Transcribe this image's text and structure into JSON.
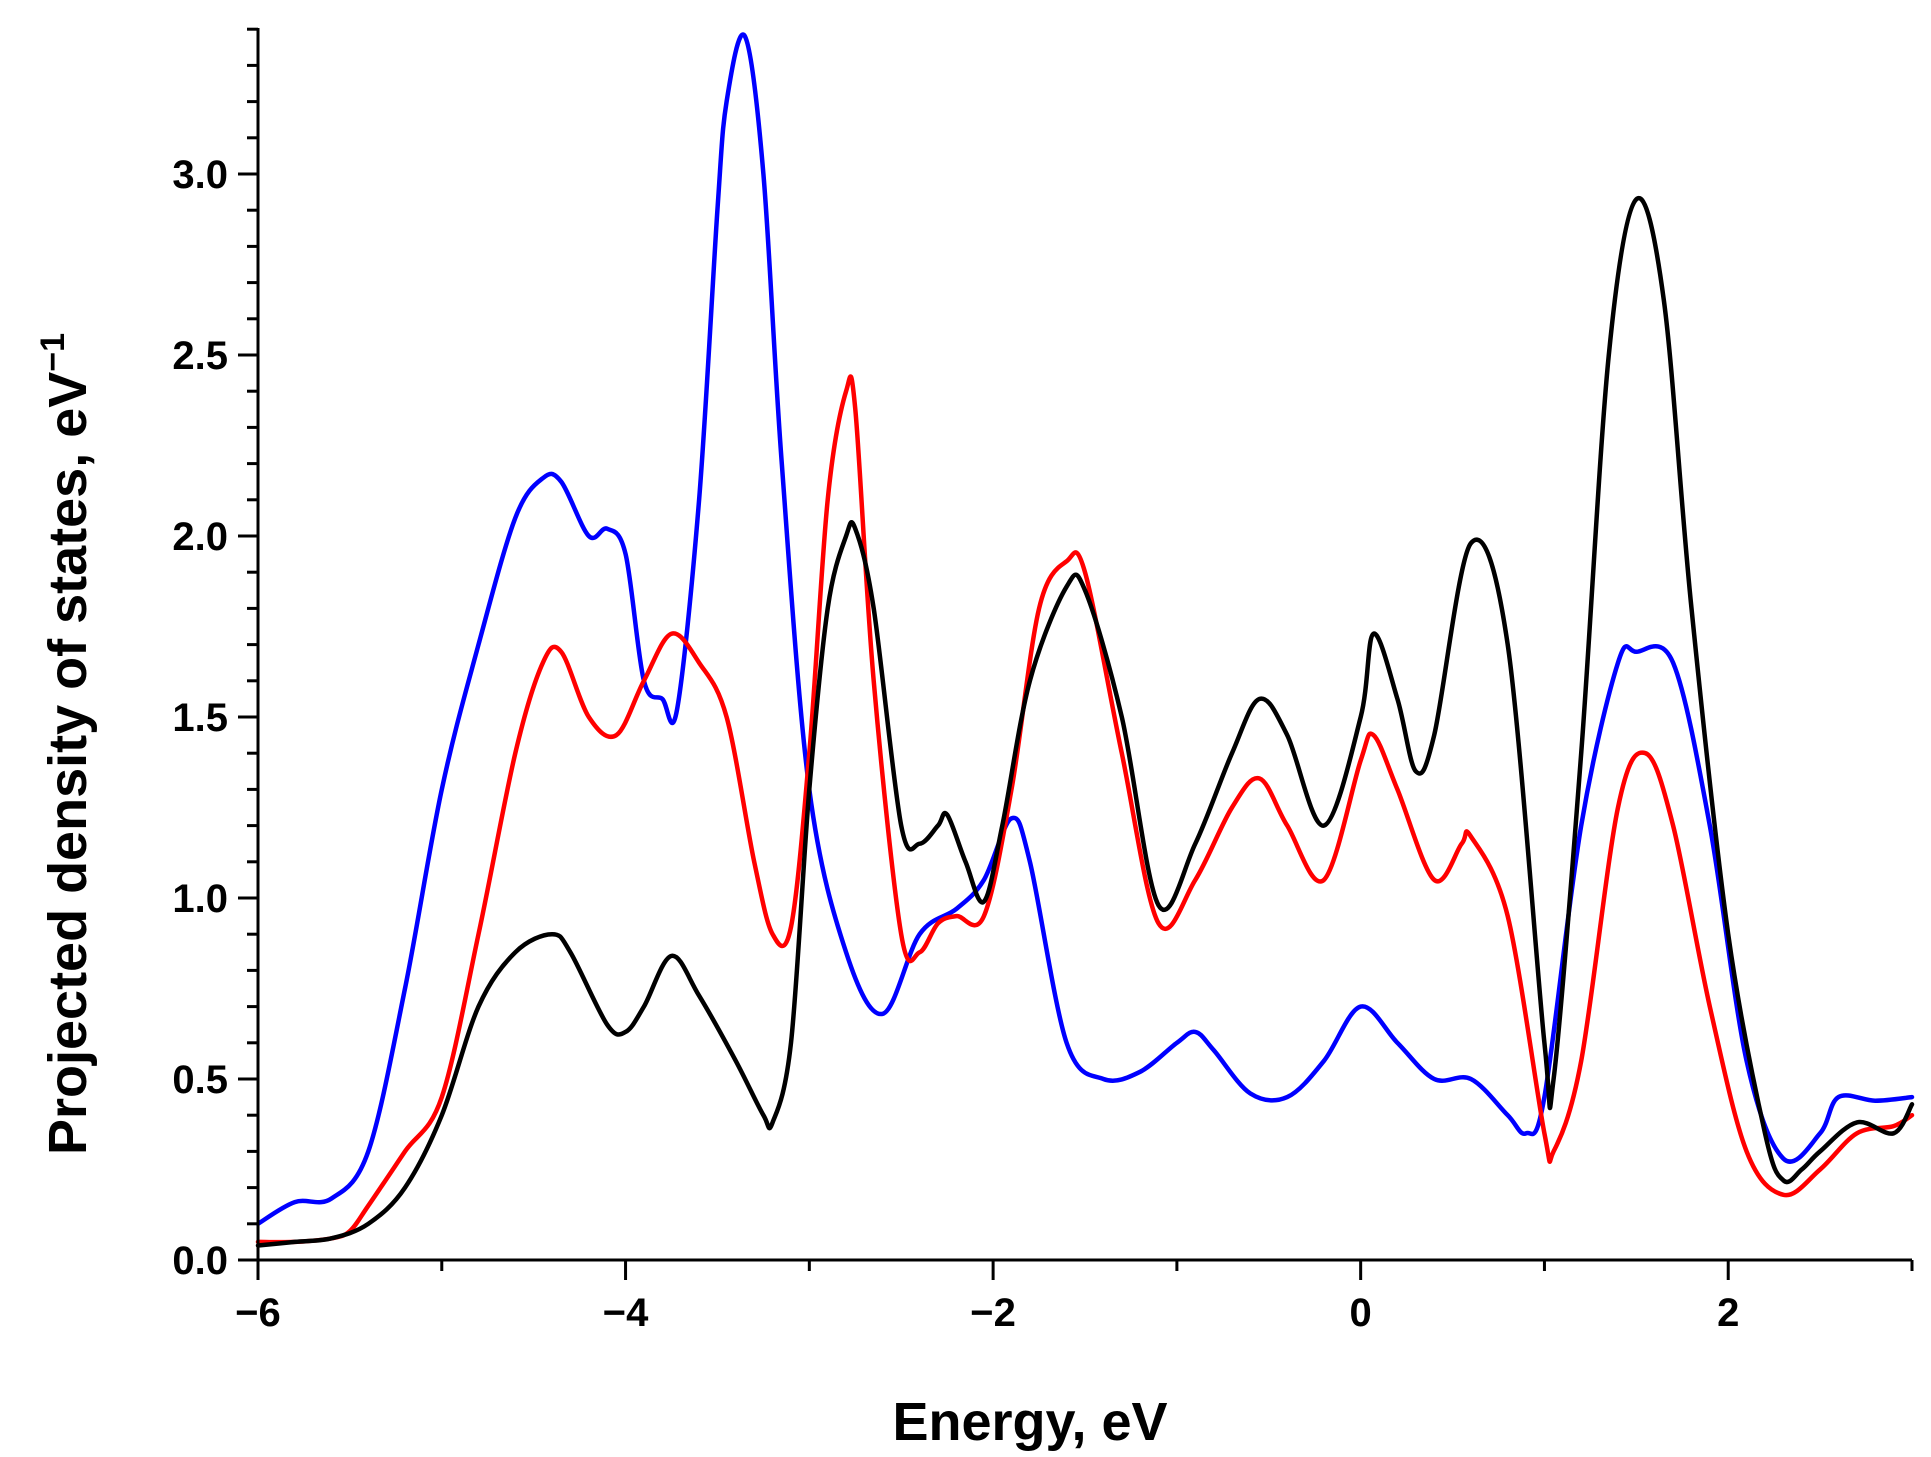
{
  "chart_data": {
    "type": "line",
    "title": "",
    "xlabel": "Energy, eV",
    "ylabel_main": "Projected density of states, eV",
    "ylabel_sup": "−1",
    "xlim": [
      -6,
      3
    ],
    "ylim": [
      0,
      3.4
    ],
    "x_ticks": [
      {
        "value": -6,
        "label": "−6"
      },
      {
        "value": -4,
        "label": "−4"
      },
      {
        "value": -2,
        "label": "−2"
      },
      {
        "value": 0,
        "label": "0"
      },
      {
        "value": 2,
        "label": "2"
      }
    ],
    "y_ticks": [
      {
        "value": 0.0,
        "label": "0.0"
      },
      {
        "value": 0.5,
        "label": "0.5"
      },
      {
        "value": 1.0,
        "label": "1.0"
      },
      {
        "value": 1.5,
        "label": "1.5"
      },
      {
        "value": 2.0,
        "label": "2.0"
      },
      {
        "value": 2.5,
        "label": "2.5"
      },
      {
        "value": 3.0,
        "label": "3.0"
      }
    ],
    "series": [
      {
        "name": "blue",
        "color": "#0000ff",
        "x": [
          -6.0,
          -5.8,
          -5.6,
          -5.4,
          -5.2,
          -5.0,
          -4.8,
          -4.6,
          -4.45,
          -4.35,
          -4.2,
          -4.1,
          -4.0,
          -3.9,
          -3.8,
          -3.72,
          -3.6,
          -3.5,
          -3.45,
          -3.35,
          -3.25,
          -3.15,
          -3.0,
          -2.8,
          -2.6,
          -2.4,
          -2.2,
          -2.05,
          -1.9,
          -1.8,
          -1.6,
          -1.4,
          -1.2,
          -1.0,
          -0.9,
          -0.8,
          -0.6,
          -0.4,
          -0.2,
          0.0,
          0.2,
          0.4,
          0.6,
          0.8,
          0.9,
          1.0,
          1.2,
          1.4,
          1.5,
          1.7,
          1.9,
          2.1,
          2.3,
          2.5,
          2.6,
          2.8,
          3.0
        ],
        "y": [
          0.1,
          0.16,
          0.17,
          0.3,
          0.75,
          1.3,
          1.7,
          2.05,
          2.16,
          2.15,
          2.0,
          2.02,
          1.95,
          1.6,
          1.55,
          1.52,
          2.1,
          2.9,
          3.2,
          3.38,
          3.0,
          2.2,
          1.3,
          0.85,
          0.68,
          0.9,
          0.97,
          1.05,
          1.22,
          1.1,
          0.6,
          0.5,
          0.52,
          0.6,
          0.63,
          0.58,
          0.46,
          0.45,
          0.55,
          0.7,
          0.6,
          0.5,
          0.5,
          0.4,
          0.35,
          0.45,
          1.2,
          1.65,
          1.68,
          1.65,
          1.2,
          0.55,
          0.28,
          0.35,
          0.45,
          0.44,
          0.45
        ]
      },
      {
        "name": "red",
        "color": "#ff0000",
        "x": [
          -6.0,
          -5.8,
          -5.6,
          -5.5,
          -5.4,
          -5.2,
          -5.0,
          -4.8,
          -4.6,
          -4.45,
          -4.35,
          -4.2,
          -4.05,
          -3.9,
          -3.75,
          -3.6,
          -3.45,
          -3.3,
          -3.2,
          -3.1,
          -3.0,
          -2.9,
          -2.8,
          -2.75,
          -2.65,
          -2.5,
          -2.4,
          -2.3,
          -2.2,
          -2.05,
          -1.9,
          -1.75,
          -1.6,
          -1.5,
          -1.3,
          -1.1,
          -0.9,
          -0.7,
          -0.55,
          -0.4,
          -0.2,
          0.0,
          0.07,
          0.2,
          0.4,
          0.55,
          0.6,
          0.8,
          1.0,
          1.05,
          1.2,
          1.4,
          1.55,
          1.7,
          1.9,
          2.1,
          2.3,
          2.5,
          2.7,
          2.9,
          3.0
        ],
        "y": [
          0.05,
          0.05,
          0.06,
          0.08,
          0.15,
          0.3,
          0.45,
          0.9,
          1.4,
          1.65,
          1.68,
          1.5,
          1.45,
          1.6,
          1.73,
          1.65,
          1.5,
          1.1,
          0.9,
          0.92,
          1.4,
          2.1,
          2.4,
          2.35,
          1.6,
          0.9,
          0.85,
          0.93,
          0.95,
          0.95,
          1.3,
          1.8,
          1.93,
          1.9,
          1.4,
          0.93,
          1.05,
          1.25,
          1.33,
          1.2,
          1.05,
          1.38,
          1.45,
          1.3,
          1.05,
          1.15,
          1.17,
          0.95,
          0.35,
          0.3,
          0.55,
          1.25,
          1.4,
          1.2,
          0.7,
          0.3,
          0.18,
          0.25,
          0.35,
          0.37,
          0.4
        ]
      },
      {
        "name": "black",
        "color": "#000000",
        "x": [
          -6.0,
          -5.8,
          -5.6,
          -5.4,
          -5.2,
          -5.0,
          -4.8,
          -4.6,
          -4.4,
          -4.3,
          -4.1,
          -4.0,
          -3.9,
          -3.75,
          -3.6,
          -3.4,
          -3.25,
          -3.2,
          -3.1,
          -3.0,
          -2.9,
          -2.8,
          -2.75,
          -2.65,
          -2.5,
          -2.4,
          -2.3,
          -2.25,
          -2.15,
          -2.05,
          -1.95,
          -1.8,
          -1.6,
          -1.5,
          -1.3,
          -1.1,
          -0.9,
          -0.7,
          -0.55,
          -0.4,
          -0.2,
          0.0,
          0.07,
          0.2,
          0.3,
          0.4,
          0.6,
          0.8,
          1.0,
          1.05,
          1.2,
          1.35,
          1.5,
          1.65,
          1.8,
          2.0,
          2.2,
          2.3,
          2.4,
          2.5,
          2.7,
          2.9,
          3.0
        ],
        "y": [
          0.04,
          0.05,
          0.06,
          0.1,
          0.2,
          0.4,
          0.7,
          0.85,
          0.9,
          0.85,
          0.65,
          0.63,
          0.7,
          0.84,
          0.73,
          0.55,
          0.4,
          0.38,
          0.6,
          1.3,
          1.8,
          2.0,
          2.02,
          1.8,
          1.2,
          1.15,
          1.2,
          1.23,
          1.1,
          0.99,
          1.2,
          1.6,
          1.86,
          1.85,
          1.5,
          0.98,
          1.15,
          1.4,
          1.55,
          1.45,
          1.2,
          1.5,
          1.73,
          1.55,
          1.35,
          1.45,
          1.98,
          1.7,
          0.6,
          0.5,
          1.4,
          2.5,
          2.93,
          2.65,
          1.8,
          0.9,
          0.35,
          0.22,
          0.25,
          0.3,
          0.38,
          0.35,
          0.43
        ]
      }
    ]
  }
}
